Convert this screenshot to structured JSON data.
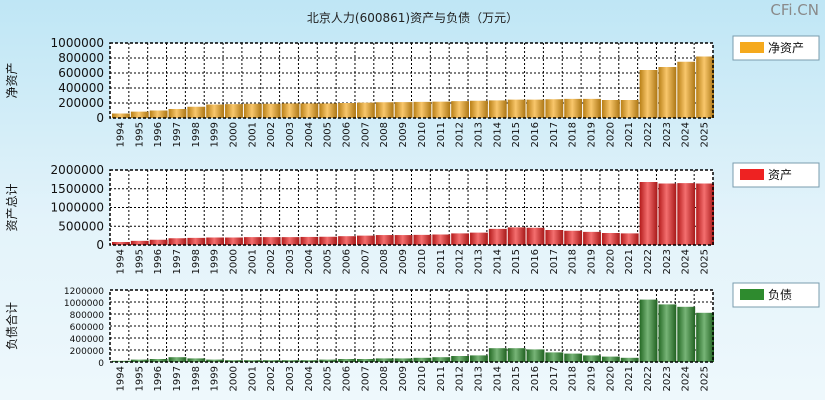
{
  "title": "北京人力(600861)资产与负债（万元）",
  "watermark": "CFi.CN",
  "chart_data": [
    {
      "type": "bar",
      "ylabel": "净资产",
      "legend": "净资产",
      "color": "#f5a91d",
      "ylim": [
        0,
        1000000
      ],
      "yticks": [
        "1000000",
        "800000",
        "600000",
        "400000",
        "200000",
        "0"
      ],
      "categories": [
        "1994",
        "1995",
        "1996",
        "1997",
        "1998",
        "1999",
        "2000",
        "2001",
        "2002",
        "2003",
        "2004",
        "2005",
        "2006",
        "2007",
        "2008",
        "2009",
        "2010",
        "2011",
        "2012",
        "2013",
        "2014",
        "2015",
        "2016",
        "2017",
        "2018",
        "2019",
        "2020",
        "2021",
        "2022",
        "2023",
        "2024",
        "2025"
      ],
      "values": [
        60000,
        85000,
        100000,
        120000,
        150000,
        180000,
        185000,
        190000,
        190000,
        195000,
        195000,
        195000,
        200000,
        205000,
        210000,
        212000,
        215000,
        218000,
        225000,
        230000,
        235000,
        245000,
        245000,
        250000,
        255000,
        255000,
        240000,
        240000,
        640000,
        680000,
        750000,
        820000
      ]
    },
    {
      "type": "bar",
      "ylabel": "资产总计",
      "legend": "资产",
      "color": "#ee2222",
      "ylim": [
        0,
        2000000
      ],
      "yticks": [
        "2000000",
        "1500000",
        "1000000",
        "500000",
        "0"
      ],
      "categories": [
        "1994",
        "1995",
        "1996",
        "1997",
        "1998",
        "1999",
        "2000",
        "2001",
        "2002",
        "2003",
        "2004",
        "2005",
        "2006",
        "2007",
        "2008",
        "2009",
        "2010",
        "2011",
        "2012",
        "2013",
        "2014",
        "2015",
        "2016",
        "2017",
        "2018",
        "2019",
        "2020",
        "2021",
        "2022",
        "2023",
        "2024",
        "2025"
      ],
      "values": [
        80000,
        110000,
        140000,
        180000,
        190000,
        200000,
        200000,
        210000,
        210000,
        210000,
        215000,
        220000,
        235000,
        250000,
        265000,
        265000,
        270000,
        280000,
        310000,
        330000,
        430000,
        470000,
        460000,
        400000,
        380000,
        350000,
        320000,
        310000,
        1680000,
        1640000,
        1650000,
        1640000
      ]
    },
    {
      "type": "bar",
      "ylabel": "负债合计",
      "legend": "负债",
      "color": "#2e8b2e",
      "ylim": [
        0,
        1200000
      ],
      "yticks": [
        "1200000",
        "1000000",
        "800000",
        "600000",
        "400000",
        "200000",
        "0"
      ],
      "categories": [
        "1994",
        "1995",
        "1996",
        "1997",
        "1998",
        "1999",
        "2000",
        "2001",
        "2002",
        "2003",
        "2004",
        "2005",
        "2006",
        "2007",
        "2008",
        "2009",
        "2010",
        "2011",
        "2012",
        "2013",
        "2014",
        "2015",
        "2016",
        "2017",
        "2018",
        "2019",
        "2020",
        "2021",
        "2022",
        "2023",
        "2024",
        "2025"
      ],
      "values": [
        20000,
        40000,
        50000,
        80000,
        60000,
        40000,
        30000,
        30000,
        30000,
        30000,
        30000,
        40000,
        50000,
        50000,
        60000,
        60000,
        70000,
        80000,
        100000,
        110000,
        230000,
        230000,
        210000,
        160000,
        140000,
        110000,
        90000,
        70000,
        1040000,
        960000,
        920000,
        820000
      ]
    }
  ]
}
